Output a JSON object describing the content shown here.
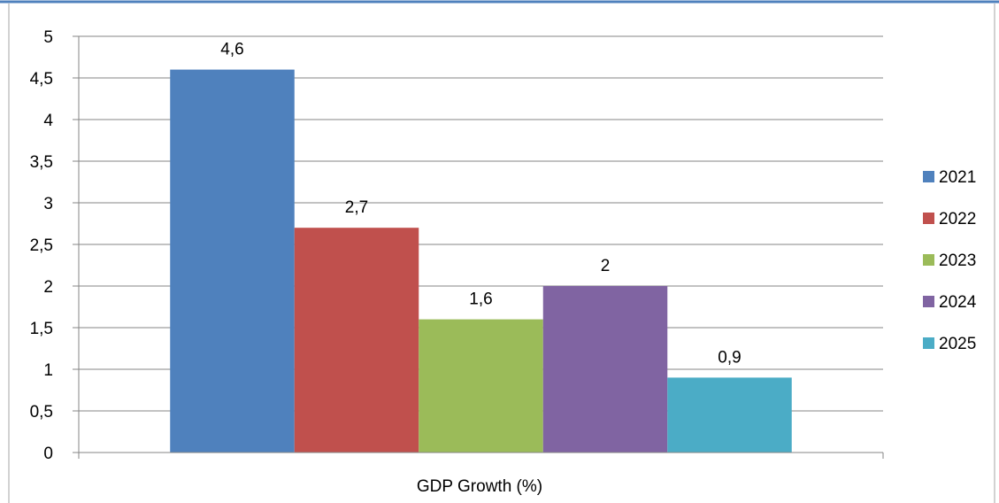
{
  "chart_data": {
    "type": "bar",
    "title": "",
    "xlabel": "",
    "ylabel": "",
    "categories": [
      "GDP Growth (%)"
    ],
    "series": [
      {
        "name": "2021",
        "values": [
          4.6
        ],
        "color": "#4F81BD"
      },
      {
        "name": "2022",
        "values": [
          2.7
        ],
        "color": "#C0504D"
      },
      {
        "name": "2023",
        "values": [
          1.6
        ],
        "color": "#9BBB59"
      },
      {
        "name": "2024",
        "values": [
          2
        ],
        "color": "#8064A2"
      },
      {
        "name": "2025",
        "values": [
          0.9
        ],
        "color": "#4BACC6"
      }
    ],
    "data_labels": [
      "4,6",
      "2,7",
      "1,6",
      "2",
      "0,9"
    ],
    "ylim": [
      0,
      5
    ],
    "y_ticks": [
      "0",
      "0,5",
      "1",
      "1,5",
      "2",
      "2,5",
      "3",
      "3,5",
      "4",
      "4,5",
      "5"
    ],
    "y_tick_values": [
      0,
      0.5,
      1,
      1.5,
      2,
      2.5,
      3,
      3.5,
      4,
      4.5,
      5
    ],
    "grid": true,
    "legend_position": "right",
    "colors": {
      "gridline": "#868686",
      "axis": "#868686",
      "frame": "#4F81BD"
    }
  }
}
